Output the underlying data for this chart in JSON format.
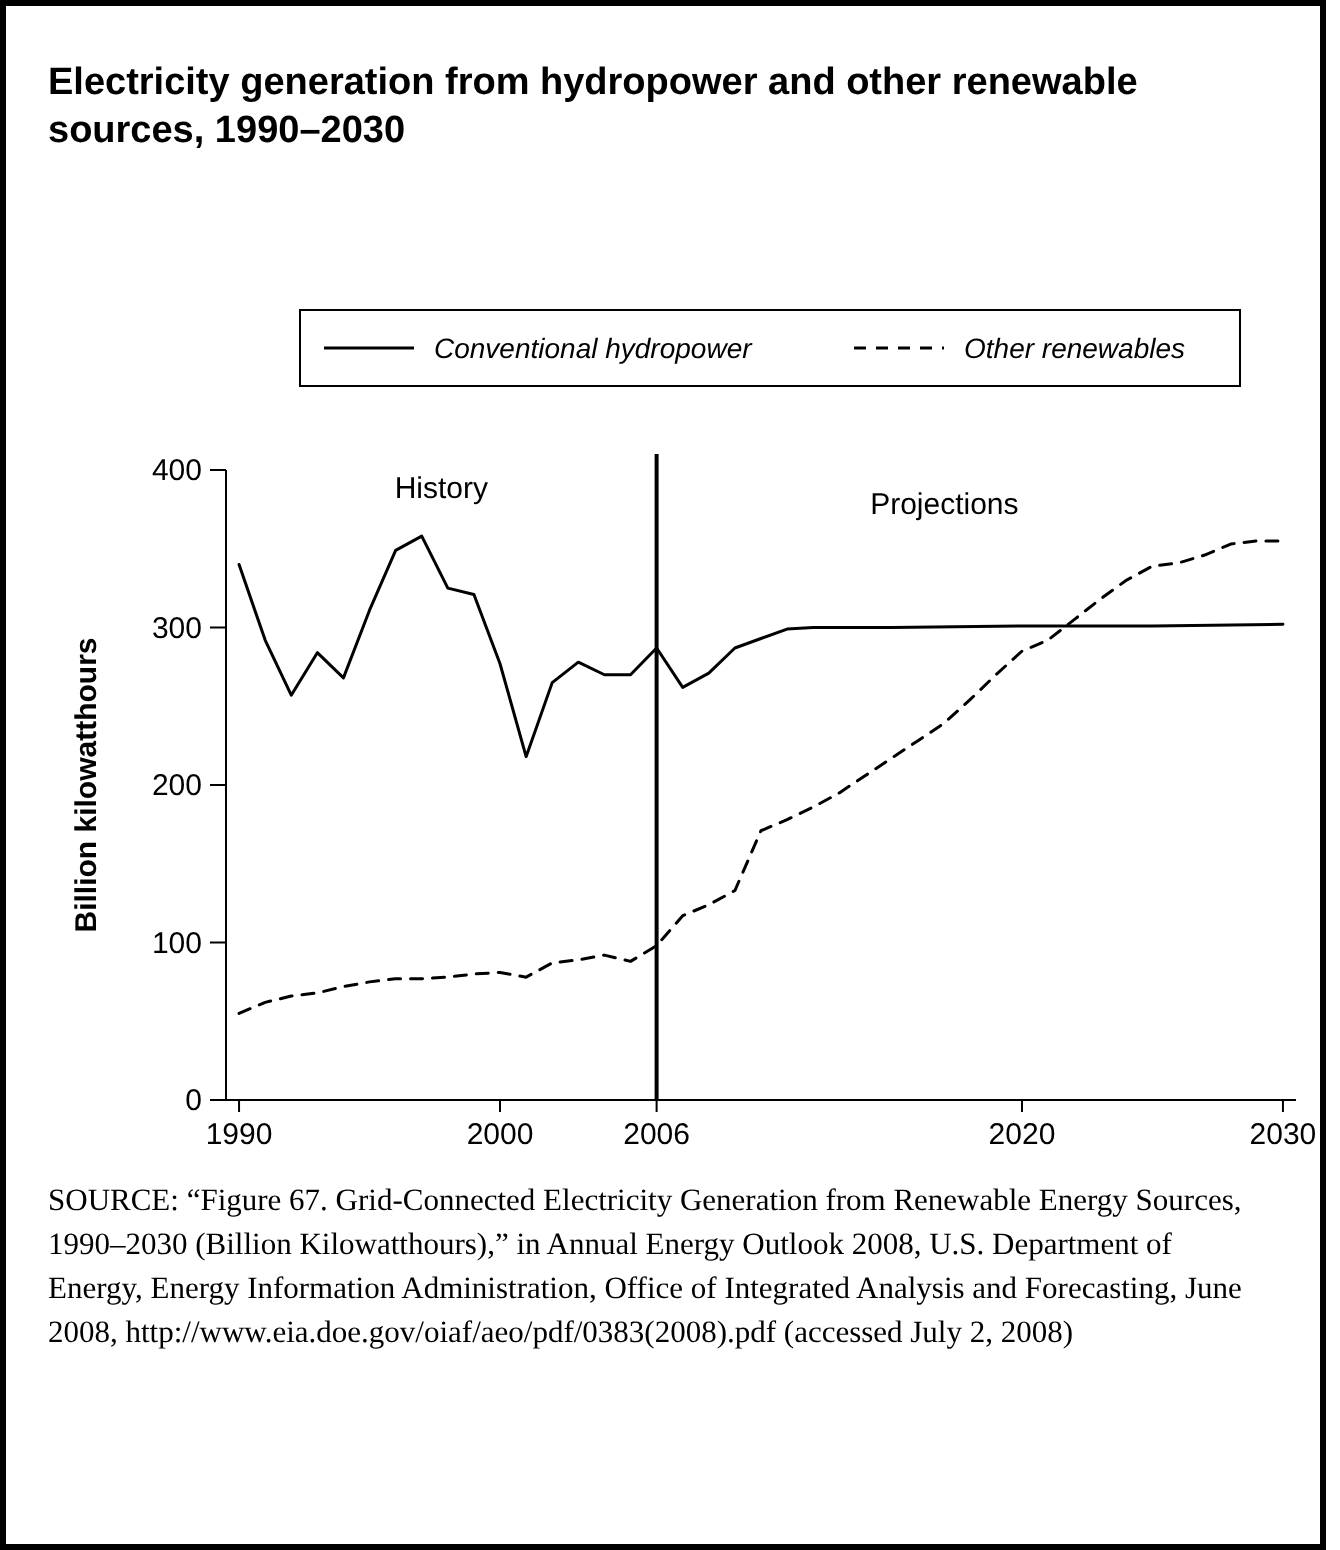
{
  "chart_data": {
    "type": "line",
    "title": "Electricity generation from hydropower and other renewable sources, 1990–2030",
    "ylabel": "Billion kilowatthours",
    "xlim": [
      1989.5,
      2030.5
    ],
    "xticks": [
      1990,
      2000,
      2006,
      2020,
      2030
    ],
    "ylim": [
      0,
      400
    ],
    "yticks": [
      0,
      100,
      200,
      300,
      400
    ],
    "grid": false,
    "legend": "top",
    "series": [
      {
        "name": "Conventional hydropower",
        "color": "#000000",
        "line_style": "solid",
        "x": [
          1990,
          1991,
          1992,
          1993,
          1994,
          1995,
          1996,
          1997,
          1998,
          1999,
          2000,
          2001,
          2002,
          2003,
          2004,
          2005,
          2006,
          2007,
          2008,
          2009,
          2010,
          2011,
          2012,
          2015,
          2020,
          2025,
          2030
        ],
        "values": [
          340,
          292,
          257,
          284,
          268,
          311,
          349,
          358,
          325,
          321,
          277,
          218,
          265,
          278,
          270,
          270,
          287,
          262,
          271,
          287,
          293,
          299,
          300,
          300,
          301,
          301,
          302
        ]
      },
      {
        "name": "Other renewables",
        "color": "#000000",
        "line_style": "dashed",
        "x": [
          1990,
          1991,
          1992,
          1993,
          1994,
          1995,
          1996,
          1997,
          1998,
          1999,
          2000,
          2001,
          2002,
          2003,
          2004,
          2005,
          2006,
          2007,
          2008,
          2009,
          2010,
          2011,
          2012,
          2013,
          2014,
          2015,
          2016,
          2017,
          2018,
          2019,
          2020,
          2021,
          2022,
          2023,
          2024,
          2025,
          2026,
          2027,
          2028,
          2029,
          2030
        ],
        "values": [
          55,
          62,
          66,
          68,
          72,
          75,
          77,
          77,
          78,
          80,
          81,
          78,
          87,
          89,
          92,
          88,
          98,
          117,
          124,
          133,
          171,
          178,
          186,
          195,
          206,
          217,
          228,
          239,
          254,
          270,
          285,
          292,
          305,
          318,
          330,
          339,
          341,
          346,
          353,
          355,
          355
        ]
      }
    ],
    "ref_lines": [
      {
        "axis": "x",
        "value": 2006,
        "color": "#000000",
        "line_style": "solid"
      }
    ],
    "annotations": [
      "History",
      "Projections",
      "SOURCE: “Figure 67. Grid-Connected Electricity Generation from Renewable Energy Sources, 1990–2030 (Billion Kilowatthours),” in Annual Energy Outlook 2008, U.S. Department of Energy, Energy Information Administration, Office of Integrated Analysis and Forecasting, June 2008, http://www.eia.doe.gov/oiaf/aeo/pdf/0383(2008).pdf (accessed July 2, 2008)"
    ]
  }
}
